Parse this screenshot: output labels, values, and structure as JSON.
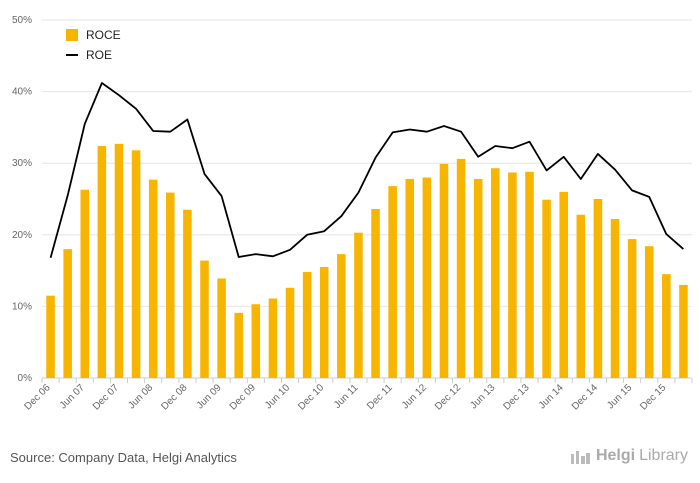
{
  "chart_data": {
    "type": "bar",
    "x": [
      "Dec 06",
      "Mar 07",
      "Jun 07",
      "Sep 07",
      "Dec 07",
      "Mar 08",
      "Jun 08",
      "Sep 08",
      "Dec 08",
      "Mar 09",
      "Jun 09",
      "Sep 09",
      "Dec 09",
      "Mar 10",
      "Jun 10",
      "Sep 10",
      "Dec 10",
      "Mar 11",
      "Jun 11",
      "Sep 11",
      "Dec 11",
      "Mar 12",
      "Jun 12",
      "Sep 12",
      "Dec 12",
      "Mar 13",
      "Jun 13",
      "Sep 13",
      "Dec 13",
      "Mar 14",
      "Jun 14",
      "Sep 14",
      "Dec 14",
      "Mar 15",
      "Jun 15",
      "Sep 15",
      "Dec 15",
      "Mar 16"
    ],
    "x_tick_labels": [
      "Dec 06",
      "Jun 07",
      "Dec 07",
      "Jun 08",
      "Dec 08",
      "Jun 09",
      "Dec 09",
      "Jun 10",
      "Dec 10",
      "Jun 11",
      "Dec 11",
      "Jun 12",
      "Dec 12",
      "Jun 13",
      "Dec 13",
      "Jun 14",
      "Dec 14",
      "Jun 15",
      "Dec 15"
    ],
    "series": [
      {
        "name": "ROCE",
        "type": "bar",
        "color": "#f7b500",
        "values": [
          11.5,
          18.0,
          26.3,
          32.4,
          32.7,
          31.8,
          27.7,
          25.9,
          23.5,
          16.4,
          13.9,
          9.1,
          10.3,
          11.1,
          12.6,
          14.8,
          15.5,
          17.3,
          20.3,
          23.6,
          26.8,
          27.8,
          28.0,
          29.9,
          30.6,
          27.8,
          29.3,
          28.7,
          28.8,
          24.9,
          26.0,
          22.8,
          25.0,
          22.2,
          19.4,
          18.4,
          14.5,
          13.0
        ]
      },
      {
        "name": "ROE",
        "type": "line",
        "color": "#000000",
        "values": [
          16.8,
          25.5,
          35.5,
          41.2,
          39.5,
          37.6,
          34.5,
          34.4,
          36.1,
          28.5,
          25.4,
          16.9,
          17.3,
          17.0,
          17.9,
          20.0,
          20.5,
          22.6,
          25.9,
          30.8,
          34.3,
          34.7,
          34.4,
          35.2,
          34.4,
          30.9,
          32.4,
          32.1,
          33.0,
          29.0,
          30.9,
          27.8,
          31.3,
          29.1,
          26.2,
          25.3,
          20.1,
          18.0
        ]
      }
    ],
    "y_ticks": [
      "0%",
      "10%",
      "20%",
      "30%",
      "40%",
      "50%"
    ],
    "ylim": [
      0,
      50
    ],
    "grid": true,
    "legend_position": "top-left"
  },
  "footer": {
    "source": "Source: Company Data, Helgi Analytics",
    "brand_prefix": "Helgi",
    "brand_suffix": "Library"
  }
}
